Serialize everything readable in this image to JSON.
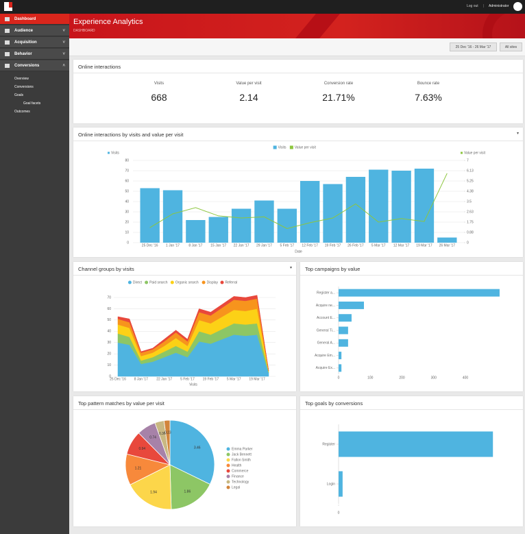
{
  "topbar": {
    "logout": "Log out",
    "separator": "|",
    "user": "Administrator"
  },
  "nav": {
    "items": [
      "Dashboard",
      "Audience",
      "Acquisition",
      "Behavior",
      "Conversions"
    ],
    "subitems": [
      "Overview",
      "Conversions",
      "Goals",
      "Goal facets",
      "Outcomes"
    ]
  },
  "header": {
    "title": "Experience Analytics",
    "subtitle": "DASHBOARD"
  },
  "filters": {
    "date": "25 Dec '16 - 26 Mar '17",
    "site": "All sites"
  },
  "kpis": {
    "title": "Online interactions",
    "items": [
      {
        "label": "Visits",
        "value": "668"
      },
      {
        "label": "Value per visit",
        "value": "2.14"
      },
      {
        "label": "Conversion rate",
        "value": "21.71%"
      },
      {
        "label": "Bounce rate",
        "value": "7.63%"
      }
    ]
  },
  "chart_data": [
    {
      "type": "combo",
      "title": "Online interactions by visits and value per visit",
      "x_label": "Date",
      "y_label": "Visits",
      "y2_label": "Value per visit",
      "categories": [
        "25 Dec '16",
        "1 Jan '17",
        "8 Jan '17",
        "15 Jan '17",
        "22 Jan '17",
        "29 Jan '17",
        "5 Feb '17",
        "12 Feb '17",
        "19 Feb '17",
        "26 Feb '17",
        "5 Mar '17",
        "12 Mar '17",
        "19 Mar '17",
        "26 Mar '17"
      ],
      "series": [
        {
          "name": "Visits",
          "type": "bar",
          "color": "#4fb4e0",
          "values": [
            53,
            51,
            22,
            25,
            33,
            41,
            33,
            60,
            57,
            64,
            71,
            70,
            72,
            5
          ]
        },
        {
          "name": "Value per visit",
          "type": "line",
          "axis": "y2",
          "color": "#8dc63f",
          "values": [
            1.28,
            2.45,
            2.98,
            2.28,
            2.1,
            2.2,
            1.2,
            1.7,
            2.1,
            3.3,
            1.75,
            2.05,
            1.8,
            5.9
          ]
        }
      ],
      "ylim": [
        0,
        80
      ],
      "yticks": [
        0,
        10,
        20,
        30,
        40,
        50,
        60,
        70,
        80
      ],
      "y2lim": [
        0,
        7
      ],
      "y2ticks": [
        0,
        {
          "value": 0.875,
          "label": "0.88"
        },
        1.75,
        {
          "value": 2.625,
          "label": "2.63"
        },
        3.5,
        {
          "value": 4.375,
          "label": "4.38"
        },
        5.25,
        {
          "value": 6.125,
          "label": "6.13"
        },
        7
      ],
      "grid": true
    },
    {
      "type": "area",
      "title": "Channel groups by visits",
      "x_label": "Visits",
      "categories": [
        "25 Dec '16",
        null,
        "8 Jan '17",
        null,
        "22 Jan '17",
        null,
        "5 Feb '17",
        null,
        "19 Feb '17",
        null,
        "5 Mar '17",
        null,
        "19 Mar '17",
        null
      ],
      "series": [
        {
          "name": "Direct",
          "color": "#4fb4e0",
          "values": [
            30,
            28,
            11,
            13,
            17,
            21,
            17,
            31,
            29,
            33,
            37,
            36,
            37,
            3
          ]
        },
        {
          "name": "Paid search",
          "color": "#8dc665",
          "values": [
            8,
            7,
            3,
            4,
            5,
            6,
            5,
            9,
            8,
            9,
            10,
            10,
            10,
            1
          ]
        },
        {
          "name": "Organic search",
          "color": "#fcd116",
          "values": [
            8,
            8,
            4,
            4,
            5,
            7,
            5,
            10,
            10,
            11,
            12,
            12,
            13,
            1
          ]
        },
        {
          "name": "Display",
          "color": "#f7941d",
          "values": [
            5,
            5,
            3,
            3,
            4,
            5,
            4,
            7,
            7,
            8,
            9,
            9,
            9,
            0
          ]
        },
        {
          "name": "Referral",
          "color": "#e8483c",
          "values": [
            2,
            3,
            1,
            1,
            2,
            2,
            2,
            3,
            3,
            3,
            3,
            3,
            3,
            0
          ]
        }
      ],
      "ylim": [
        0,
        70
      ],
      "yticks": [
        0,
        10,
        20,
        30,
        40,
        50,
        60,
        70
      ],
      "grid": true
    },
    {
      "type": "barh",
      "title": "Top campaigns by value",
      "categories": [
        "Register a...",
        "Acquire ne...",
        "Account E...",
        "General Ti...",
        "General A...",
        "Acquire Em...",
        "Acquire Ex..."
      ],
      "values": [
        508,
        80,
        41,
        30,
        30,
        9,
        9
      ],
      "color": "#4fb4e0",
      "xlim": [
        0,
        500
      ],
      "xticks": [
        0,
        100,
        200,
        300,
        400
      ]
    },
    {
      "type": "pie",
      "title": "Top pattern matches by value per visit",
      "categories": [
        "Emma Parker",
        "Jack Bennett",
        "Fallon Smith",
        "Health",
        "Commerce",
        "Finance",
        "Technology",
        "Legal"
      ],
      "values": [
        3.46,
        1.86,
        1.94,
        1.21,
        0.94,
        0.74,
        0.36,
        0.23
      ],
      "colors": [
        "#4fb4e0",
        "#8dc665",
        "#fcd64a",
        "#f7893b",
        "#e8483c",
        "#a782a8",
        "#c9b882",
        "#d2853c"
      ]
    },
    {
      "type": "barh",
      "title": "Top goals by conversions",
      "categories": [
        "Register",
        "Login"
      ],
      "values": [
        115,
        3
      ],
      "color": "#4fb4e0",
      "xlim": [
        0,
        120
      ],
      "xticks": [
        0
      ]
    }
  ]
}
